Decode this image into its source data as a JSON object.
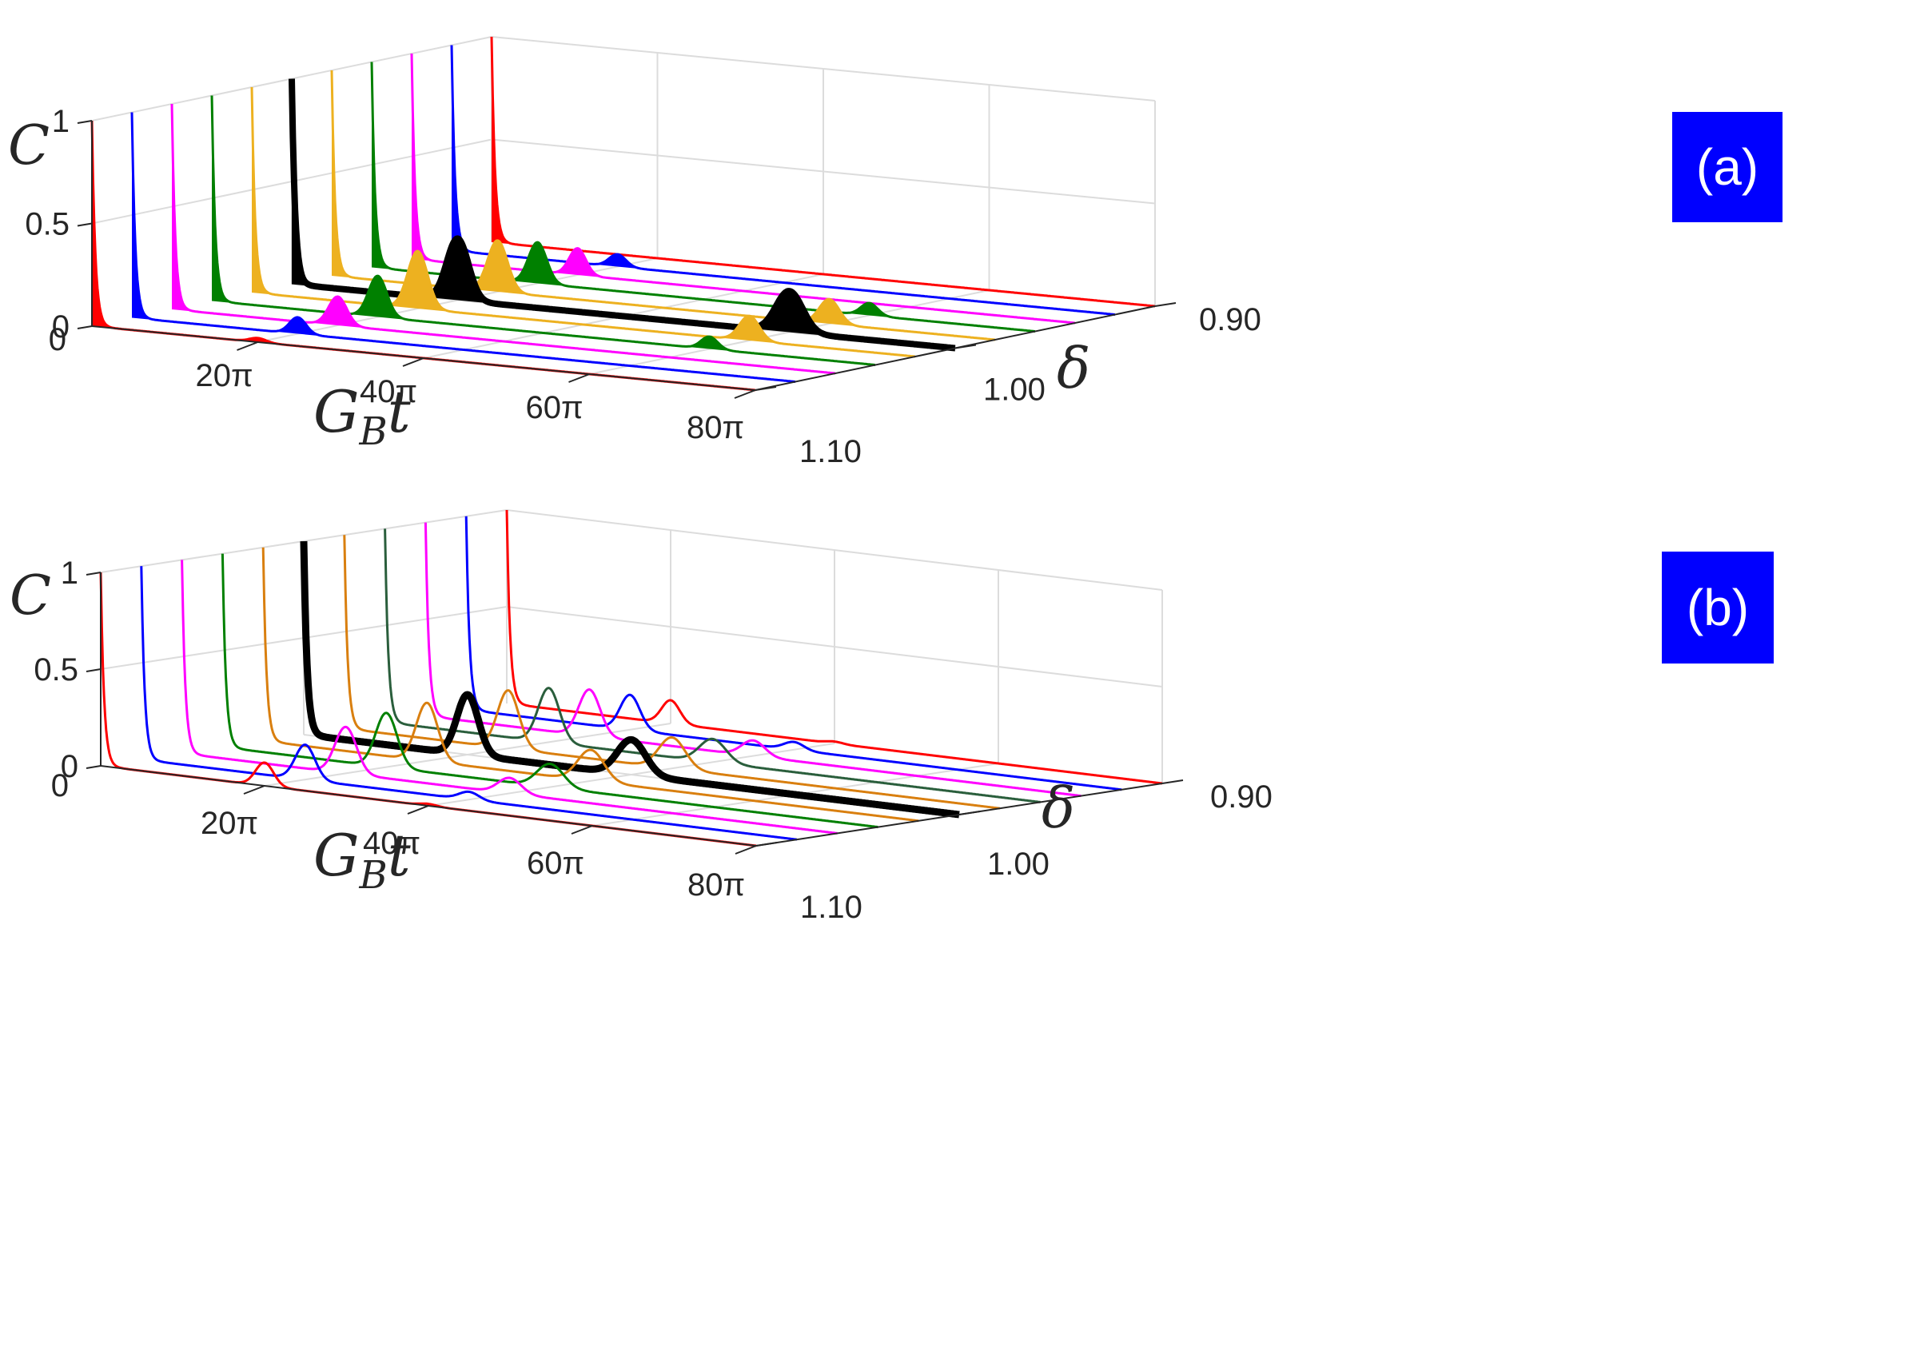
{
  "chart_data": [
    {
      "type": "line",
      "panel_label": "(a)",
      "badge_color": "#0000ff",
      "xlabel": "G",
      "xlabel_sub": "B",
      "xlabel_tail": "t",
      "ylabel": "C",
      "zlabel": "δ",
      "x_ticks": [
        "0",
        "20π",
        "40π",
        "60π",
        "80π"
      ],
      "z_ticks": [
        "0",
        "0.5",
        "1"
      ],
      "y_ticks": [
        "0.90",
        "1.00",
        "1.10"
      ],
      "xlim": [
        0,
        80
      ],
      "zlim": [
        0,
        1
      ],
      "grid": true,
      "series": [
        {
          "name": "δ = 1.10",
          "color": "#ff0000",
          "width": 3,
          "filled": true,
          "peaks": [
            [
              0,
              1.0,
              0.4
            ],
            [
              20,
              0.02,
              1.0
            ]
          ]
        },
        {
          "name": "δ = 1.08",
          "color": "#0000ff",
          "width": 3,
          "filled": true,
          "peaks": [
            [
              0,
              1.0,
              0.4
            ],
            [
              20,
              0.08,
              1.0
            ]
          ]
        },
        {
          "name": "δ = 1.06",
          "color": "#ff00ff",
          "width": 3,
          "filled": true,
          "peaks": [
            [
              0,
              1.0,
              0.4
            ],
            [
              20,
              0.14,
              1.1
            ]
          ]
        },
        {
          "name": "δ = 1.04",
          "color": "#008000",
          "width": 3,
          "filled": true,
          "peaks": [
            [
              0,
              1.0,
              0.4
            ],
            [
              20,
              0.2,
              1.1
            ],
            [
              60,
              0.06,
              1.0
            ]
          ]
        },
        {
          "name": "δ = 1.02",
          "color": "#edb120",
          "width": 3,
          "filled": true,
          "peaks": [
            [
              0,
              1.0,
              0.4
            ],
            [
              20,
              0.28,
              1.2
            ],
            [
              60,
              0.12,
              1.2
            ]
          ]
        },
        {
          "name": "δ = 1.00",
          "color": "#000000",
          "width": 8,
          "filled": true,
          "peaks": [
            [
              0,
              1.0,
              0.4
            ],
            [
              20,
              0.3,
              1.3
            ],
            [
              60,
              0.2,
              1.6
            ]
          ]
        },
        {
          "name": "δ = 0.98",
          "color": "#edb120",
          "width": 3,
          "filled": true,
          "peaks": [
            [
              0,
              1.0,
              0.4
            ],
            [
              20,
              0.25,
              1.2
            ],
            [
              60,
              0.12,
              1.2
            ]
          ]
        },
        {
          "name": "δ = 0.96",
          "color": "#008000",
          "width": 3,
          "filled": true,
          "peaks": [
            [
              0,
              1.0,
              0.4
            ],
            [
              20,
              0.2,
              1.1
            ],
            [
              60,
              0.06,
              1.0
            ]
          ]
        },
        {
          "name": "δ = 0.94",
          "color": "#ff00ff",
          "width": 3,
          "filled": true,
          "peaks": [
            [
              0,
              1.0,
              0.4
            ],
            [
              20,
              0.13,
              1.0
            ]
          ]
        },
        {
          "name": "δ = 0.92",
          "color": "#0000ff",
          "width": 3,
          "filled": true,
          "peaks": [
            [
              0,
              1.0,
              0.4
            ],
            [
              20,
              0.06,
              1.0
            ]
          ]
        },
        {
          "name": "δ = 0.90",
          "color": "#ff0000",
          "width": 3,
          "filled": true,
          "peaks": [
            [
              0,
              1.0,
              0.4
            ]
          ]
        }
      ]
    },
    {
      "type": "line",
      "panel_label": "(b)",
      "badge_color": "#0000ff",
      "xlabel": "G",
      "xlabel_sub": "B",
      "xlabel_tail": "t",
      "ylabel": "C",
      "zlabel": "δ",
      "x_ticks": [
        "0",
        "20π",
        "40π",
        "60π",
        "80π"
      ],
      "z_ticks": [
        "0",
        "0.5",
        "1"
      ],
      "y_ticks": [
        "0.90",
        "1.00",
        "1.10"
      ],
      "xlim": [
        0,
        80
      ],
      "zlim": [
        0,
        1
      ],
      "grid": true,
      "series": [
        {
          "name": "δ = 1.10",
          "color": "#ff0000",
          "width": 3,
          "filled": false,
          "peaks": [
            [
              0,
              1.0,
              0.4
            ],
            [
              20,
              0.12,
              1.1
            ],
            [
              40,
              0.01,
              1.0
            ]
          ]
        },
        {
          "name": "δ = 1.08",
          "color": "#0000ff",
          "width": 3,
          "filled": false,
          "peaks": [
            [
              0,
              1.0,
              0.4
            ],
            [
              20,
              0.18,
              1.2
            ],
            [
              40,
              0.04,
              1.2
            ]
          ]
        },
        {
          "name": "δ = 1.06",
          "color": "#ff00ff",
          "width": 3,
          "filled": false,
          "peaks": [
            [
              0,
              1.0,
              0.4
            ],
            [
              20,
              0.24,
              1.3
            ],
            [
              40,
              0.08,
              1.4
            ]
          ]
        },
        {
          "name": "δ = 1.04",
          "color": "#008000",
          "width": 3,
          "filled": false,
          "peaks": [
            [
              0,
              1.0,
              0.4
            ],
            [
              20,
              0.28,
              1.3
            ],
            [
              40,
              0.12,
              1.6
            ]
          ]
        },
        {
          "name": "δ = 1.02",
          "color": "#d97f0f",
          "width": 3,
          "filled": false,
          "peaks": [
            [
              0,
              1.0,
              0.4
            ],
            [
              20,
              0.3,
              1.3
            ],
            [
              40,
              0.16,
              1.6
            ]
          ]
        },
        {
          "name": "δ = 1.00",
          "color": "#000000",
          "width": 9,
          "filled": false,
          "peaks": [
            [
              0,
              1.0,
              0.4
            ],
            [
              20,
              0.31,
              1.3
            ],
            [
              40,
              0.18,
              1.7
            ]
          ]
        },
        {
          "name": "δ = 0.98",
          "color": "#d97f0f",
          "width": 3,
          "filled": false,
          "peaks": [
            [
              0,
              1.0,
              0.4
            ],
            [
              20,
              0.3,
              1.3
            ],
            [
              40,
              0.16,
              1.6
            ]
          ]
        },
        {
          "name": "δ = 0.96",
          "color": "#2a5e3c",
          "width": 3,
          "filled": false,
          "peaks": [
            [
              0,
              1.0,
              0.4
            ],
            [
              20,
              0.28,
              1.3
            ],
            [
              40,
              0.12,
              1.6
            ]
          ]
        },
        {
          "name": "δ = 0.94",
          "color": "#ff00ff",
          "width": 3,
          "filled": false,
          "peaks": [
            [
              0,
              1.0,
              0.4
            ],
            [
              20,
              0.24,
              1.3
            ],
            [
              40,
              0.08,
              1.4
            ]
          ]
        },
        {
          "name": "δ = 0.92",
          "color": "#0000ff",
          "width": 3,
          "filled": false,
          "peaks": [
            [
              0,
              1.0,
              0.4
            ],
            [
              20,
              0.18,
              1.2
            ],
            [
              40,
              0.04,
              1.2
            ]
          ]
        },
        {
          "name": "δ = 0.90",
          "color": "#ff0000",
          "width": 3,
          "filled": false,
          "peaks": [
            [
              0,
              1.0,
              0.4
            ],
            [
              20,
              0.12,
              1.1
            ],
            [
              40,
              0.01,
              1.0
            ]
          ]
        }
      ]
    }
  ]
}
